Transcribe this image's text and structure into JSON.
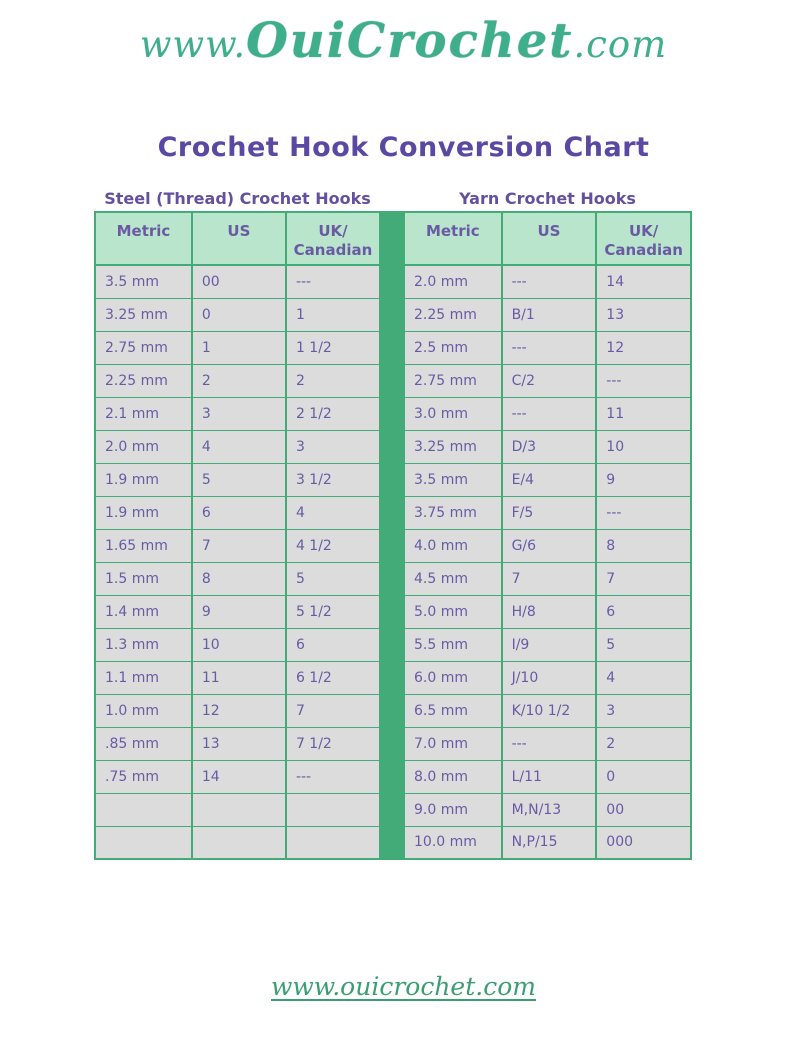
{
  "page": {
    "logo": {
      "prefix": "www.",
      "brand": "OuiCrochet",
      "suffix": ".com"
    },
    "title": "Crochet Hook Conversion Chart",
    "footer_link": "www.ouicrochet.com"
  },
  "colors": {
    "accent_green": "#43ab78",
    "table_header_bg": "#b9e5cc",
    "table_cell_bg": "#dcdcdc",
    "text_purple": "#6a5aa3",
    "title_purple": "#5b48a2",
    "logo_teal": "#3fae8a",
    "footer_green": "#3b9e72"
  },
  "tables": [
    {
      "section_title": "Steel (Thread) Crochet Hooks",
      "headers": [
        "Metric",
        "US",
        "UK/\nCanadian"
      ],
      "rows": [
        [
          "3.5 mm",
          "00",
          "---"
        ],
        [
          "3.25 mm",
          "0",
          "1"
        ],
        [
          "2.75 mm",
          "1",
          "1 1/2"
        ],
        [
          "2.25 mm",
          "2",
          "2"
        ],
        [
          "2.1 mm",
          "3",
          "2 1/2"
        ],
        [
          "2.0 mm",
          "4",
          "3"
        ],
        [
          "1.9 mm",
          "5",
          "3 1/2"
        ],
        [
          "1.9 mm",
          "6",
          "4"
        ],
        [
          "1.65 mm",
          "7",
          "4 1/2"
        ],
        [
          "1.5 mm",
          "8",
          "5"
        ],
        [
          "1.4 mm",
          "9",
          "5 1/2"
        ],
        [
          "1.3 mm",
          "10",
          "6"
        ],
        [
          "1.1 mm",
          "11",
          "6 1/2"
        ],
        [
          "1.0 mm",
          "12",
          "7"
        ],
        [
          ".85 mm",
          "13",
          "7 1/2"
        ],
        [
          ".75 mm",
          "14",
          "---"
        ],
        [
          "",
          "",
          ""
        ],
        [
          "",
          "",
          ""
        ]
      ]
    },
    {
      "section_title": "Yarn Crochet Hooks",
      "headers": [
        "Metric",
        "US",
        "UK/\nCanadian"
      ],
      "rows": [
        [
          "2.0 mm",
          "---",
          "14"
        ],
        [
          "2.25 mm",
          "B/1",
          "13"
        ],
        [
          "2.5 mm",
          "---",
          "12"
        ],
        [
          "2.75 mm",
          "C/2",
          "---"
        ],
        [
          "3.0 mm",
          "---",
          "11"
        ],
        [
          "3.25 mm",
          "D/3",
          "10"
        ],
        [
          "3.5 mm",
          "E/4",
          "9"
        ],
        [
          "3.75 mm",
          "F/5",
          "---"
        ],
        [
          "4.0 mm",
          "G/6",
          "8"
        ],
        [
          "4.5 mm",
          "7",
          "7"
        ],
        [
          "5.0 mm",
          "H/8",
          "6"
        ],
        [
          "5.5 mm",
          "I/9",
          "5"
        ],
        [
          "6.0 mm",
          "J/10",
          "4"
        ],
        [
          "6.5 mm",
          "K/10 1/2",
          "3"
        ],
        [
          "7.0 mm",
          "---",
          "2"
        ],
        [
          "8.0 mm",
          "L/11",
          "0"
        ],
        [
          "9.0 mm",
          "M,N/13",
          "00"
        ],
        [
          "10.0 mm",
          "N,P/15",
          "000"
        ]
      ]
    }
  ]
}
